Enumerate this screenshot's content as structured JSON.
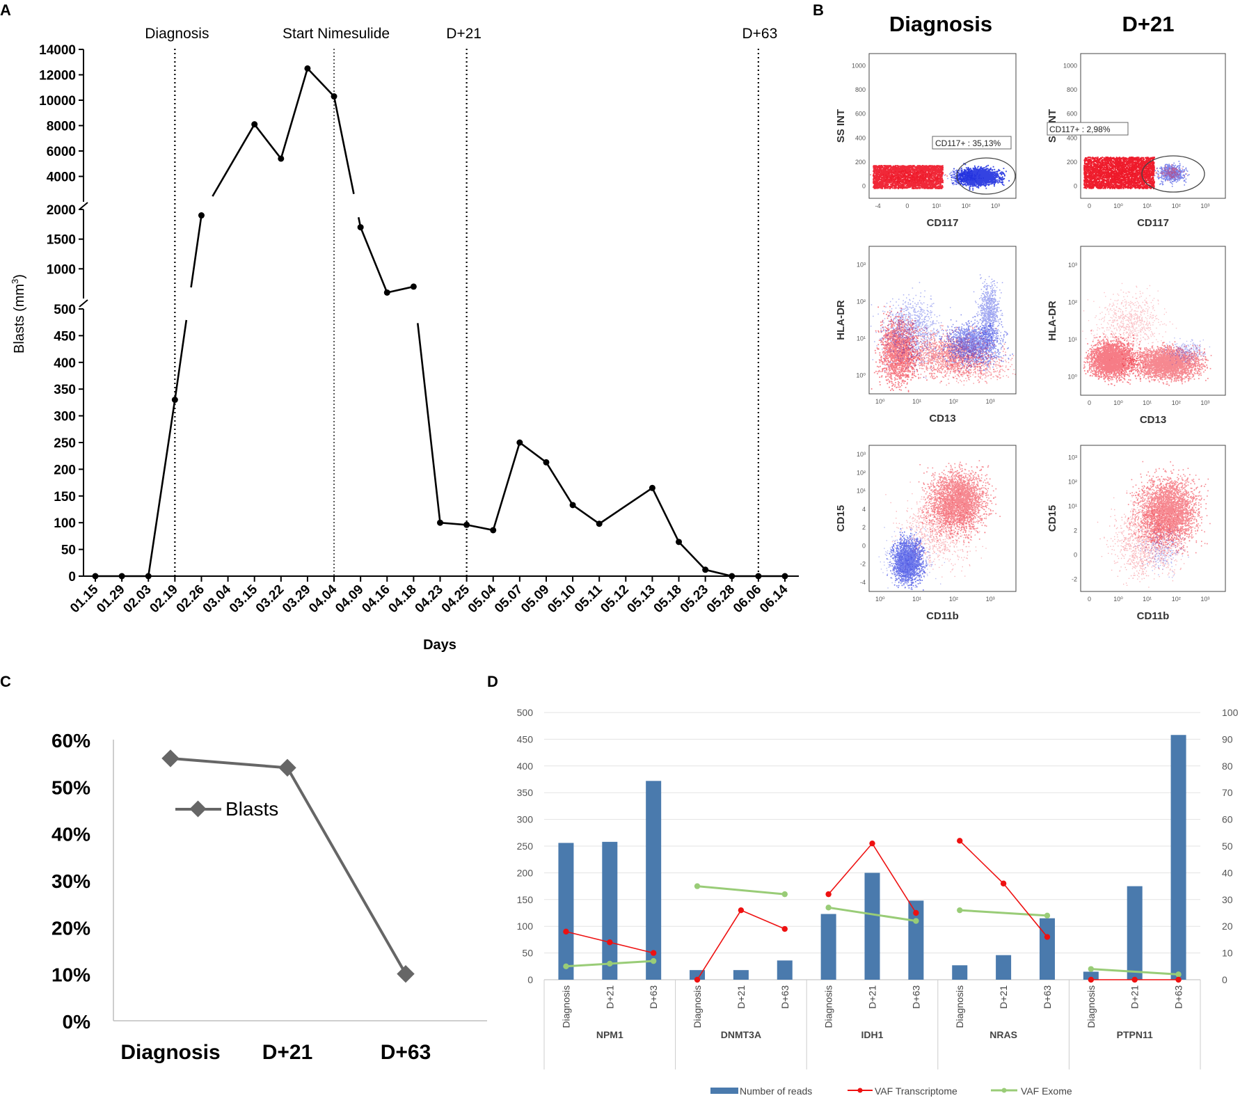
{
  "panels": {
    "a": "A",
    "b": "B",
    "c": "C",
    "d": "D"
  },
  "colors": {
    "line": "#000000",
    "blastsC": "#666666",
    "bars": "#4a7aad",
    "vafTranscriptome": "#ee1111",
    "vafExome": "#99cc77",
    "flowRed": "#ee1122",
    "flowBlue": "#1122dd"
  },
  "chart_data": [
    {
      "id": "A",
      "type": "line",
      "title": "",
      "xlabel": "Days",
      "ylabel": "Blasts (mm³)",
      "ylabel_base": "Blasts (mm",
      "ylabel_sup": "3",
      "ylabel_end": ")",
      "x": [
        "01.15",
        "01.29",
        "02.03",
        "02.19",
        "02.26",
        "03.04",
        "03.15",
        "03.22",
        "03.29",
        "04.04",
        "04.09",
        "04.16",
        "04.18",
        "04.23",
        "04.25",
        "05.04",
        "05.07",
        "05.09",
        "05.10",
        "05.11",
        "05.12",
        "05.13",
        "05.18",
        "05.23",
        "05.28",
        "06.06",
        "06.14"
      ],
      "values": [
        0,
        0,
        0,
        330,
        1900,
        null,
        8100,
        5400,
        12500,
        10300,
        1700,
        600,
        700,
        100,
        96,
        86,
        250,
        213,
        133,
        98,
        null,
        165,
        64,
        12,
        0,
        0,
        0
      ],
      "y_segments": [
        {
          "range": [
            0,
            500
          ],
          "ticks": [
            "0",
            "50",
            "100",
            "150",
            "200",
            "250",
            "300",
            "350",
            "400",
            "450",
            "500"
          ]
        },
        {
          "range": [
            500,
            2000
          ],
          "ticks": [
            "1000",
            "1500",
            "2000"
          ]
        },
        {
          "range": [
            2000,
            14000
          ],
          "ticks": [
            "4000",
            "6000",
            "8000",
            "10000",
            "12000",
            "14000"
          ]
        }
      ],
      "events": [
        {
          "label": "Diagnosis",
          "at": "02.19"
        },
        {
          "label": "Start Nimesulide",
          "at": "04.04"
        },
        {
          "label": "D+21",
          "at": "04.25"
        },
        {
          "label": "D+63",
          "at": "06.06"
        }
      ]
    },
    {
      "id": "B",
      "type": "scatter",
      "columns": [
        "Diagnosis",
        "D+21"
      ],
      "plots": [
        {
          "xlabel": "CD117",
          "ylabel": "SS INT",
          "yticks": [
            "0",
            "200",
            "400",
            "600",
            "800",
            "1000"
          ],
          "xticks": [
            "-4",
            "0",
            "10¹",
            "10²",
            "10³"
          ],
          "gate": "CD117+ : 35,13%"
        },
        {
          "xlabel": "CD117",
          "ylabel": "SS INT",
          "yticks": [
            "0",
            "200",
            "400",
            "600",
            "800",
            "1000"
          ],
          "xticks": [
            "0",
            "10⁰",
            "10¹",
            "10²",
            "10³"
          ],
          "gate": "CD117+ : 2,98%"
        },
        {
          "xlabel": "CD13",
          "ylabel": "HLA-DR",
          "yticks": [
            "10⁰",
            "10¹",
            "10²",
            "10³"
          ],
          "xticks": [
            "10⁰",
            "10¹",
            "10²",
            "10³"
          ]
        },
        {
          "xlabel": "CD13",
          "ylabel": "HLA-DR",
          "yticks": [
            "10⁰",
            "10¹",
            "10²",
            "10³"
          ],
          "xticks": [
            "0",
            "10⁰",
            "10¹",
            "10²",
            "10³"
          ]
        },
        {
          "xlabel": "CD11b",
          "ylabel": "CD15",
          "yticks": [
            "-4",
            "-2",
            "0",
            "2",
            "4",
            "10¹",
            "10²",
            "10³"
          ],
          "xticks": [
            "10⁰",
            "10¹",
            "10²",
            "10³"
          ]
        },
        {
          "xlabel": "CD11b",
          "ylabel": "CD15",
          "yticks": [
            "-2",
            "0",
            "2",
            "10¹",
            "10²",
            "10³"
          ],
          "xticks": [
            "0",
            "10⁰",
            "10¹",
            "10²",
            "10³"
          ]
        }
      ]
    },
    {
      "id": "C",
      "type": "line",
      "categories": [
        "Diagnosis",
        "D+21",
        "D+63"
      ],
      "series": [
        {
          "name": "Blasts",
          "values": [
            56,
            54,
            10
          ]
        }
      ],
      "ylim": [
        0,
        60
      ],
      "yticks": [
        "0%",
        "10%",
        "20%",
        "30%",
        "40%",
        "50%",
        "60%"
      ]
    },
    {
      "id": "D",
      "type": "bar",
      "genes": [
        "NPM1",
        "DNMT3A",
        "IDH1",
        "NRAS",
        "PTPN11"
      ],
      "timepoints": [
        "Diagnosis",
        "D+21",
        "D+63"
      ],
      "y_left": {
        "range": [
          0,
          500
        ],
        "ticks": [
          "0",
          "50",
          "100",
          "150",
          "200",
          "250",
          "300",
          "350",
          "400",
          "450",
          "500"
        ]
      },
      "y_right": {
        "range": [
          0,
          100
        ],
        "ticks": [
          "0",
          "10",
          "20",
          "30",
          "40",
          "50",
          "60",
          "70",
          "80",
          "90",
          "100"
        ]
      },
      "series": [
        {
          "name": "Number of reads",
          "axis": "left",
          "values": [
            256,
            258,
            372,
            18,
            18,
            36,
            123,
            200,
            148,
            27,
            46,
            115,
            15,
            175,
            458
          ]
        },
        {
          "name": "VAF Transcriptome",
          "axis": "right",
          "values": [
            18,
            14,
            10,
            0,
            26,
            19,
            32,
            51,
            25,
            52,
            36,
            16,
            0,
            0,
            0
          ]
        },
        {
          "name": "VAF Exome",
          "axis": "right",
          "values": [
            5,
            6,
            7,
            35,
            null,
            32,
            27,
            null,
            22,
            26,
            null,
            24,
            4,
            null,
            2
          ]
        }
      ]
    }
  ]
}
